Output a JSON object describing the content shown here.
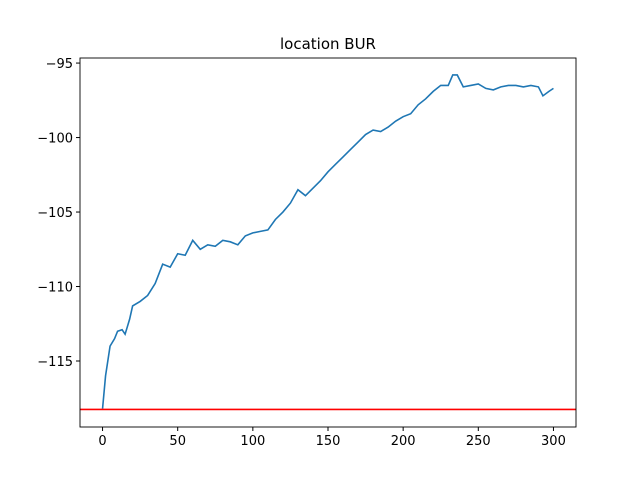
{
  "chart_data": {
    "type": "line",
    "title": "location BUR",
    "x": [
      0,
      2,
      5,
      8,
      10,
      13,
      15,
      18,
      20,
      25,
      30,
      35,
      40,
      45,
      50,
      55,
      60,
      65,
      70,
      75,
      80,
      85,
      90,
      95,
      100,
      105,
      110,
      115,
      120,
      125,
      130,
      135,
      140,
      145,
      150,
      155,
      160,
      165,
      170,
      175,
      180,
      185,
      190,
      195,
      200,
      205,
      210,
      215,
      220,
      225,
      230,
      233,
      236,
      240,
      245,
      250,
      255,
      260,
      265,
      270,
      275,
      280,
      285,
      290,
      293,
      297,
      300
    ],
    "series": [
      {
        "color": "#1f77b4",
        "values": [
          -118.2,
          -116,
          -114,
          -113.5,
          -113,
          -112.9,
          -113.2,
          -112.2,
          -111.3,
          -111,
          -110.6,
          -109.8,
          -108.5,
          -108.7,
          -107.8,
          -107.9,
          -106.9,
          -107.5,
          -107.2,
          -107.3,
          -106.9,
          -107,
          -107.2,
          -106.6,
          -106.4,
          -106.3,
          -106.2,
          -105.5,
          -105,
          -104.4,
          -103.5,
          -103.9,
          -103.4,
          -102.9,
          -102.3,
          -101.8,
          -101.3,
          -100.8,
          -100.3,
          -99.8,
          -99.5,
          -99.6,
          -99.3,
          -98.9,
          -98.6,
          -98.4,
          -97.8,
          -97.4,
          -96.9,
          -96.5,
          -96.5,
          -95.8,
          -95.8,
          -96.6,
          -96.5,
          -96.4,
          -96.7,
          -96.8,
          -96.6,
          -96.5,
          -96.5,
          -96.6,
          -96.5,
          -96.6,
          -97.2,
          -96.9,
          -96.7
        ]
      }
    ],
    "reference_line": {
      "value": -118.25,
      "color": "#ff0000"
    },
    "xlim": [
      -15,
      315
    ],
    "xticks": [
      0,
      50,
      100,
      150,
      200,
      250,
      300
    ],
    "ylim": [
      -119.43,
      -94.66
    ],
    "yticks": [
      {
        "value": -115,
        "label": "−115"
      },
      {
        "value": -110,
        "label": "−110"
      },
      {
        "value": -105,
        "label": "−105"
      },
      {
        "value": -100,
        "label": "−100"
      },
      {
        "value": -95,
        "label": "−95"
      }
    ]
  }
}
